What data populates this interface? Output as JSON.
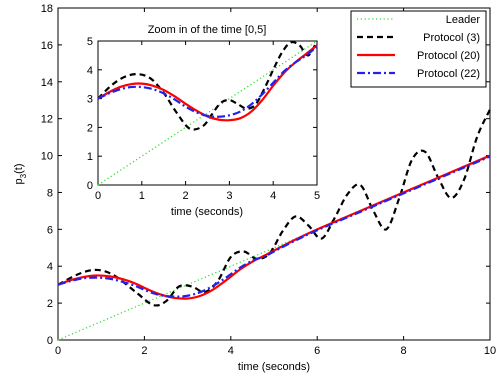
{
  "chart_data": [
    {
      "type": "line",
      "title": "",
      "xlabel": "time  (seconds)",
      "ylabel": "p",
      "ylabel_sub": "3",
      "ylabel_suffix": "(t)",
      "xlim": [
        0,
        10
      ],
      "ylim": [
        0,
        18
      ],
      "xticks": [
        "0",
        "2",
        "4",
        "6",
        "8",
        "10"
      ],
      "yticks": [
        "0",
        "2",
        "4",
        "6",
        "8",
        "10",
        "12",
        "14",
        "16",
        "18"
      ],
      "grid": false,
      "legend_position": "top-right",
      "series": [
        {
          "name": "Leader",
          "color": "#33dd33",
          "style": "dotted",
          "x": [
            0,
            10
          ],
          "y": [
            0,
            10
          ]
        },
        {
          "name": "Protocol (3)",
          "color": "#000000",
          "style": "dashed",
          "x": [
            0,
            0.5,
            0.9,
            1.3,
            1.8,
            2.2,
            2.5,
            2.8,
            3.1,
            3.4,
            3.7,
            4.0,
            4.3,
            4.6,
            4.9,
            5.2,
            5.5,
            5.8,
            6.1,
            6.4,
            6.7,
            7.0,
            7.3,
            7.6,
            7.9,
            8.2,
            8.5,
            8.8,
            9.1,
            9.4,
            9.7,
            10
          ],
          "y": [
            3.0,
            3.6,
            3.8,
            3.5,
            2.6,
            1.9,
            2.1,
            2.9,
            2.9,
            2.6,
            3.2,
            4.5,
            4.8,
            4.4,
            4.7,
            5.9,
            6.7,
            6.2,
            5.5,
            6.6,
            7.9,
            8.4,
            7.0,
            6.0,
            7.7,
            9.8,
            10.2,
            8.8,
            7.7,
            8.7,
            11.0,
            12.5
          ]
        },
        {
          "name": "Protocol (20)",
          "color": "#ff0000",
          "style": "solid",
          "x": [
            0,
            0.3,
            0.6,
            0.9,
            1.2,
            1.5,
            1.8,
            2.1,
            2.4,
            2.7,
            3.0,
            3.3,
            3.6,
            3.9,
            4.2,
            4.5,
            4.8,
            5.0,
            5.5,
            6,
            7,
            8,
            9,
            10
          ],
          "y": [
            3.0,
            3.25,
            3.42,
            3.5,
            3.45,
            3.3,
            3.05,
            2.72,
            2.45,
            2.28,
            2.25,
            2.4,
            2.75,
            3.25,
            3.8,
            4.25,
            4.6,
            4.85,
            5.45,
            6.0,
            7.0,
            8.0,
            9.0,
            10.0
          ]
        },
        {
          "name": "Protocol (22)",
          "color": "#2222ee",
          "style": "dashdot",
          "x": [
            0,
            0.3,
            0.6,
            0.9,
            1.2,
            1.5,
            1.8,
            2.1,
            2.4,
            2.7,
            3.0,
            3.3,
            3.6,
            3.9,
            4.2,
            4.5,
            4.8,
            5.0,
            5.5,
            6,
            7,
            8,
            9,
            10
          ],
          "y": [
            3.0,
            3.2,
            3.35,
            3.38,
            3.32,
            3.15,
            2.92,
            2.62,
            2.42,
            2.35,
            2.4,
            2.6,
            2.95,
            3.4,
            3.9,
            4.3,
            4.55,
            4.8,
            5.4,
            5.95,
            6.95,
            7.95,
            8.95,
            9.95
          ]
        }
      ]
    },
    {
      "type": "line",
      "title": "Zoom in of the time [0,5]",
      "xlabel": "time  (seconds)",
      "ylabel": "",
      "xlim": [
        0,
        5
      ],
      "ylim": [
        0,
        5
      ],
      "xticks": [
        "0",
        "1",
        "2",
        "3",
        "4",
        "5"
      ],
      "yticks": [
        "0",
        "1",
        "2",
        "3",
        "4",
        "5"
      ],
      "grid": false,
      "series": [
        {
          "name": "Leader",
          "color": "#33dd33",
          "style": "dotted",
          "x": [
            0,
            5
          ],
          "y": [
            0,
            5
          ]
        },
        {
          "name": "Protocol (3)",
          "color": "#000000",
          "style": "dashed",
          "x": [
            0,
            0.3,
            0.6,
            0.9,
            1.2,
            1.5,
            1.8,
            2.1,
            2.4,
            2.6,
            2.8,
            3.0,
            3.2,
            3.4,
            3.6,
            3.8,
            4.0,
            4.2,
            4.4,
            4.6,
            4.8,
            5.0
          ],
          "y": [
            3.0,
            3.45,
            3.75,
            3.85,
            3.7,
            3.2,
            2.5,
            1.95,
            2.05,
            2.45,
            2.85,
            2.95,
            2.8,
            2.65,
            2.8,
            3.35,
            4.0,
            4.6,
            4.95,
            4.85,
            4.5,
            5.0
          ]
        },
        {
          "name": "Protocol (20)",
          "color": "#ff0000",
          "style": "solid",
          "x": [
            0,
            0.25,
            0.5,
            0.75,
            1.0,
            1.25,
            1.5,
            1.75,
            2.0,
            2.25,
            2.5,
            2.75,
            3.0,
            3.25,
            3.5,
            3.75,
            4.0,
            4.25,
            4.5,
            4.75,
            5.0
          ],
          "y": [
            3.0,
            3.22,
            3.4,
            3.5,
            3.52,
            3.45,
            3.3,
            3.08,
            2.82,
            2.58,
            2.38,
            2.27,
            2.25,
            2.32,
            2.55,
            2.95,
            3.45,
            3.9,
            4.25,
            4.55,
            4.85
          ]
        },
        {
          "name": "Protocol (22)",
          "color": "#2222ee",
          "style": "dashdot",
          "x": [
            0,
            0.25,
            0.5,
            0.75,
            1.0,
            1.25,
            1.5,
            1.75,
            2.0,
            2.25,
            2.5,
            2.75,
            3.0,
            3.25,
            3.5,
            3.75,
            4.0,
            4.25,
            4.5,
            4.75,
            5.0
          ],
          "y": [
            3.0,
            3.18,
            3.32,
            3.4,
            3.4,
            3.33,
            3.18,
            2.97,
            2.72,
            2.52,
            2.4,
            2.37,
            2.42,
            2.55,
            2.8,
            3.15,
            3.55,
            3.95,
            4.25,
            4.5,
            4.8
          ]
        }
      ]
    }
  ]
}
